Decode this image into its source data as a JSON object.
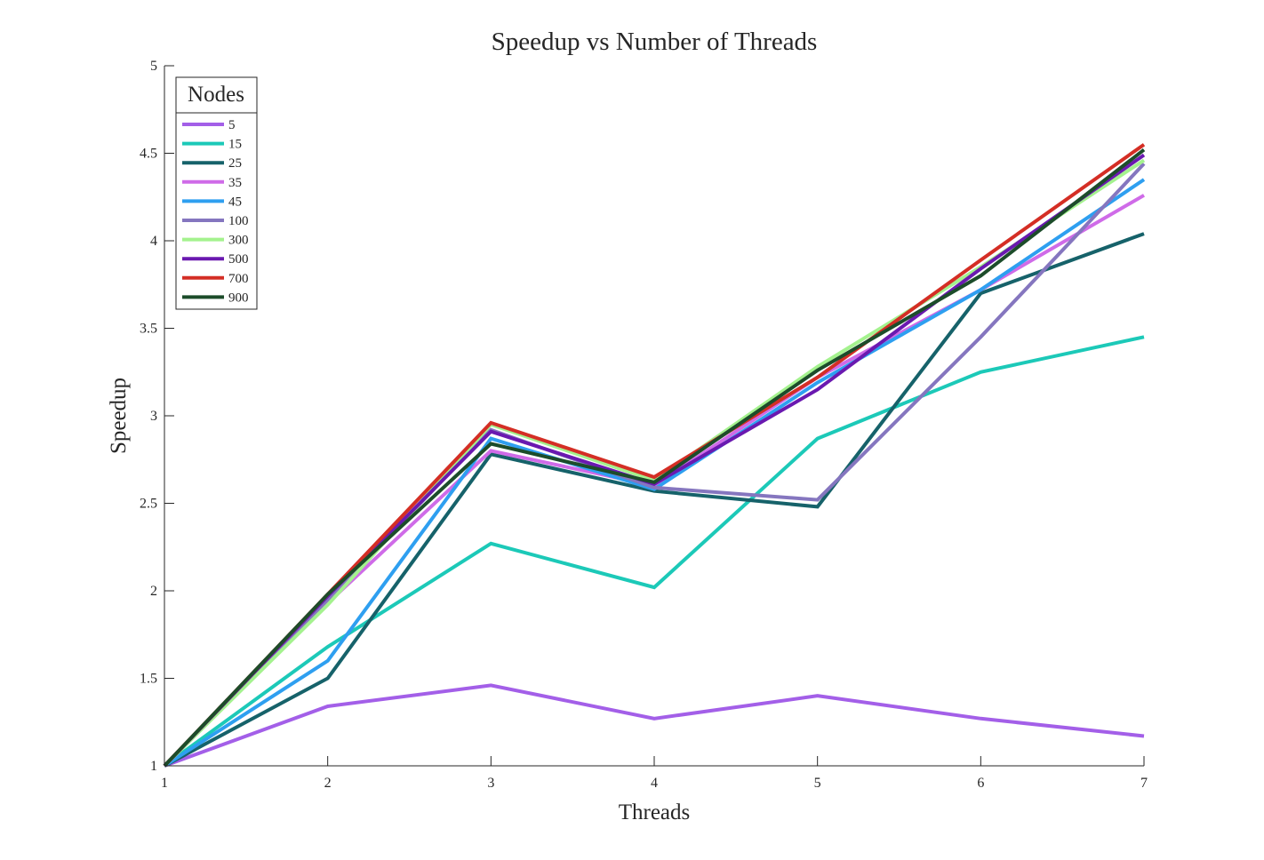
{
  "chart_data": {
    "type": "line",
    "title": "Speedup vs Number of Threads",
    "xlabel": "Threads",
    "ylabel": "Speedup",
    "xlim": [
      1,
      7
    ],
    "ylim": [
      1,
      5
    ],
    "x": [
      1,
      2,
      3,
      4,
      5,
      6,
      7
    ],
    "xticks": [
      "1",
      "2",
      "3",
      "4",
      "5",
      "6",
      "7"
    ],
    "yticks": [
      "1",
      "1.5",
      "2",
      "2.5",
      "3",
      "3.5",
      "4",
      "4.5",
      "5"
    ],
    "grid": false,
    "legend": {
      "title": "Nodes",
      "placement": "top-left"
    },
    "series": [
      {
        "name": "5",
        "color": "#a35fe8",
        "values": [
          1,
          1.34,
          1.46,
          1.27,
          1.4,
          1.27,
          1.17
        ]
      },
      {
        "name": "15",
        "color": "#1cc9b8",
        "values": [
          1,
          1.68,
          2.27,
          2.02,
          2.87,
          3.25,
          3.45
        ]
      },
      {
        "name": "25",
        "color": "#16626a",
        "values": [
          1,
          1.5,
          2.78,
          2.57,
          2.48,
          3.7,
          4.04
        ]
      },
      {
        "name": "35",
        "color": "#cf6be8",
        "values": [
          1,
          1.93,
          2.8,
          2.6,
          3.22,
          3.72,
          4.26
        ]
      },
      {
        "name": "45",
        "color": "#2e9ff0",
        "values": [
          1,
          1.6,
          2.87,
          2.58,
          3.19,
          3.72,
          4.35
        ]
      },
      {
        "name": "100",
        "color": "#8576bf",
        "values": [
          1,
          1.95,
          2.92,
          2.59,
          2.52,
          3.45,
          4.44
        ]
      },
      {
        "name": "300",
        "color": "#a4f28e",
        "values": [
          1,
          1.92,
          2.95,
          2.63,
          3.28,
          3.85,
          4.46
        ]
      },
      {
        "name": "500",
        "color": "#6a19b0",
        "values": [
          1,
          1.97,
          2.91,
          2.61,
          3.15,
          3.84,
          4.49
        ]
      },
      {
        "name": "700",
        "color": "#d42e25",
        "values": [
          1,
          1.98,
          2.96,
          2.65,
          3.22,
          3.89,
          4.55
        ]
      },
      {
        "name": "900",
        "color": "#1c4c2a",
        "values": [
          1,
          1.98,
          2.84,
          2.62,
          3.26,
          3.8,
          4.52
        ]
      }
    ]
  }
}
